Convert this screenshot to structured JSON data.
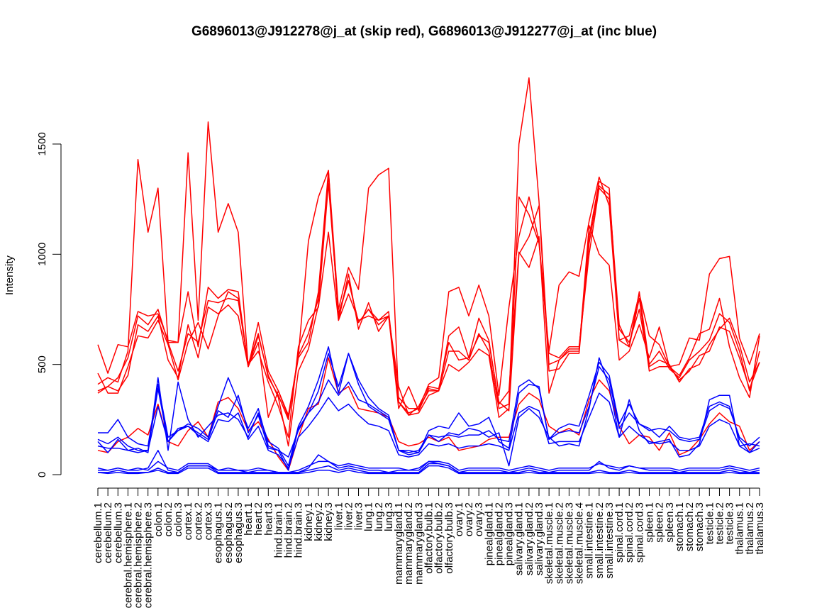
{
  "chart_data": {
    "type": "line",
    "title": "G6896013@J912278@j_at (skip red), G6896013@J912277@j_at (inc blue)",
    "xlabel": "",
    "ylabel": "Intensity",
    "ylim": [
      0,
      1820
    ],
    "yticks": [
      0,
      500,
      1000,
      1500
    ],
    "grid": false,
    "legend": "none",
    "colors": {
      "skip": "#ff0000",
      "inc": "#0000ff",
      "axis": "#000000"
    },
    "categories": [
      "cerebellum.1",
      "cerebellum.2",
      "cerebellum.3",
      "cerebral.hemisphere.1",
      "cerebral.hemisphere.2",
      "cerebral.hemisphere.3",
      "colon.1",
      "colon.2",
      "colon.3",
      "cortex.1",
      "cortex.2",
      "cortex.3",
      "esophagus.1",
      "esophagus.2",
      "esophagus.3",
      "heart.1",
      "heart.2",
      "heart.3",
      "hind.brain.1",
      "hind.brain.2",
      "hind.brain.3",
      "kidney.1",
      "kidney.2",
      "kidney.3",
      "liver.1",
      "liver.2",
      "liver.3",
      "lung.1",
      "lung.2",
      "lung.3",
      "mammarygland.1",
      "mammarygland.2",
      "mammarygland.3",
      "olfactory.bulb.1",
      "olfactory.bulb.2",
      "olfactory.bulb.3",
      "ovary.1",
      "ovary.2",
      "ovary.3",
      "pinealgland.1",
      "pinealgland.2",
      "pinealgland.3",
      "salivary.gland.1",
      "salivary.gland.2",
      "salivary.gland.3",
      "skeletal.muscle.1",
      "skeletal.muscle.2",
      "skeletal.muscle.3",
      "skeletal.muscle.4",
      "small.intestine.1",
      "small.intestine.2",
      "small.intestine.3",
      "spinal.cord.1",
      "spinal.cord.2",
      "spinal.cord.3",
      "spleen.1",
      "spleen.2",
      "spleen.3",
      "stomach.1",
      "stomach.2",
      "stomach.3",
      "testicle.1",
      "testicle.2",
      "testicle.3",
      "thalamus.1",
      "thalamus.2",
      "thalamus.3"
    ],
    "series": [
      {
        "group": "skip",
        "values": [
          590,
          460,
          590,
          580,
          740,
          720,
          730,
          610,
          600,
          830,
          580,
          850,
          800,
          840,
          830,
          490,
          690,
          470,
          380,
          260,
          530,
          600,
          830,
          1380,
          700,
          910,
          660,
          780,
          650,
          720,
          300,
          400,
          290,
          390,
          380,
          630,
          670,
          530,
          710,
          610,
          320,
          380,
          1010,
          940,
          1080,
          370,
          520,
          560,
          560,
          1130,
          1000,
          950,
          520,
          560,
          680,
          530,
          670,
          490,
          450,
          530,
          640,
          660,
          800,
          580,
          440,
          350,
          630
        ]
      },
      {
        "group": "skip",
        "values": [
          460,
          370,
          370,
          490,
          630,
          620,
          700,
          590,
          430,
          600,
          690,
          570,
          720,
          830,
          800,
          500,
          560,
          420,
          310,
          170,
          580,
          700,
          760,
          1100,
          700,
          820,
          700,
          720,
          700,
          720,
          400,
          270,
          310,
          400,
          390,
          600,
          520,
          530,
          630,
          600,
          330,
          290,
          1000,
          1080,
          1220,
          470,
          480,
          550,
          550,
          1050,
          1310,
          1270,
          680,
          580,
          800,
          470,
          490,
          490,
          430,
          470,
          540,
          560,
          670,
          650,
          530,
          390,
          510
        ]
      },
      {
        "group": "skip",
        "values": [
          370,
          400,
          380,
          450,
          680,
          650,
          720,
          520,
          440,
          680,
          530,
          760,
          730,
          770,
          720,
          490,
          630,
          450,
          350,
          130,
          470,
          570,
          770,
          1320,
          730,
          880,
          690,
          750,
          700,
          740,
          330,
          270,
          280,
          360,
          380,
          500,
          470,
          510,
          570,
          540,
          260,
          300,
          1260,
          1180,
          1050,
          550,
          530,
          580,
          580,
          1000,
          1300,
          1250,
          660,
          600,
          750,
          490,
          520,
          500,
          420,
          480,
          500,
          590,
          660,
          710,
          590,
          420,
          510
        ]
      },
      {
        "group": "skip",
        "values": [
          380,
          400,
          440,
          530,
          720,
          680,
          750,
          600,
          470,
          640,
          600,
          790,
          780,
          800,
          790,
          500,
          640,
          440,
          360,
          250,
          540,
          640,
          800,
          1360,
          720,
          880,
          690,
          750,
          680,
          720,
          350,
          300,
          300,
          380,
          380,
          560,
          560,
          520,
          640,
          560,
          300,
          320,
          1500,
          1800,
          1240,
          500,
          520,
          570,
          570,
          1080,
          1330,
          1300,
          610,
          580,
          830,
          500,
          560,
          480,
          440,
          520,
          560,
          610,
          730,
          690,
          560,
          380,
          560
        ]
      },
      {
        "group": "skip",
        "values": [
          410,
          440,
          420,
          560,
          1430,
          1100,
          1300,
          600,
          600,
          1460,
          700,
          1600,
          1100,
          1230,
          1100,
          490,
          600,
          260,
          380,
          270,
          540,
          1060,
          1260,
          1380,
          750,
          940,
          840,
          1300,
          1360,
          1390,
          330,
          280,
          300,
          410,
          440,
          830,
          850,
          720,
          860,
          720,
          360,
          760,
          1080,
          1260,
          1060,
          560,
          860,
          920,
          900,
          1150,
          1350,
          1220,
          610,
          630,
          820,
          630,
          590,
          490,
          500,
          620,
          610,
          910,
          980,
          990,
          620,
          500,
          640
        ]
      },
      {
        "group": "skip",
        "values": [
          110,
          100,
          150,
          170,
          210,
          180,
          320,
          150,
          130,
          200,
          240,
          170,
          330,
          350,
          300,
          200,
          240,
          160,
          80,
          20,
          170,
          300,
          320,
          530,
          370,
          400,
          300,
          290,
          280,
          260,
          150,
          130,
          140,
          170,
          150,
          170,
          110,
          120,
          130,
          160,
          170,
          170,
          320,
          370,
          340,
          220,
          190,
          210,
          180,
          340,
          430,
          380,
          220,
          140,
          180,
          170,
          110,
          190,
          90,
          110,
          160,
          230,
          280,
          240,
          220,
          110,
          150
        ]
      },
      {
        "group": "inc",
        "values": [
          150,
          100,
          160,
          110,
          120,
          100,
          440,
          110,
          420,
          250,
          170,
          220,
          270,
          280,
          250,
          170,
          280,
          150,
          120,
          40,
          220,
          310,
          430,
          580,
          370,
          550,
          410,
          310,
          280,
          250,
          110,
          100,
          110,
          180,
          150,
          190,
          180,
          210,
          200,
          170,
          190,
          40,
          260,
          300,
          260,
          170,
          130,
          140,
          130,
          300,
          530,
          400,
          170,
          340,
          200,
          140,
          150,
          160,
          80,
          90,
          140,
          340,
          360,
          360,
          130,
          140,
          130
        ]
      },
      {
        "group": "inc",
        "values": [
          190,
          190,
          250,
          170,
          140,
          130,
          410,
          170,
          200,
          230,
          210,
          170,
          310,
          440,
          330,
          210,
          300,
          130,
          110,
          20,
          210,
          280,
          380,
          550,
          400,
          550,
          430,
          350,
          300,
          270,
          110,
          110,
          100,
          200,
          220,
          210,
          280,
          220,
          230,
          260,
          150,
          120,
          370,
          410,
          400,
          160,
          210,
          230,
          220,
          360,
          510,
          450,
          230,
          320,
          230,
          210,
          170,
          220,
          170,
          160,
          170,
          310,
          330,
          310,
          160,
          100,
          150
        ]
      },
      {
        "group": "inc",
        "values": [
          160,
          140,
          170,
          130,
          110,
          110,
          390,
          150,
          210,
          220,
          190,
          160,
          290,
          260,
          360,
          190,
          270,
          120,
          110,
          80,
          200,
          280,
          330,
          430,
          360,
          420,
          340,
          320,
          290,
          260,
          110,
          90,
          100,
          180,
          170,
          180,
          170,
          180,
          180,
          200,
          160,
          150,
          400,
          430,
          390,
          160,
          190,
          200,
          190,
          310,
          490,
          430,
          210,
          280,
          230,
          200,
          210,
          200,
          160,
          150,
          160,
          290,
          320,
          300,
          170,
          130,
          170
        ]
      },
      {
        "group": "inc",
        "values": [
          130,
          120,
          120,
          110,
          100,
          110,
          310,
          150,
          200,
          220,
          180,
          150,
          250,
          240,
          280,
          160,
          220,
          110,
          90,
          30,
          170,
          220,
          280,
          350,
          290,
          320,
          270,
          230,
          220,
          200,
          90,
          80,
          90,
          140,
          130,
          140,
          120,
          130,
          130,
          140,
          130,
          110,
          280,
          310,
          290,
          140,
          150,
          150,
          150,
          260,
          370,
          330,
          170,
          220,
          180,
          150,
          140,
          150,
          110,
          110,
          130,
          220,
          250,
          230,
          130,
          100,
          120
        ]
      },
      {
        "group": "inc",
        "values": [
          20,
          20,
          30,
          20,
          20,
          30,
          110,
          20,
          10,
          40,
          40,
          40,
          20,
          30,
          20,
          10,
          20,
          20,
          10,
          10,
          10,
          30,
          90,
          60,
          30,
          40,
          30,
          20,
          20,
          10,
          20,
          20,
          20,
          60,
          50,
          40,
          10,
          20,
          20,
          20,
          20,
          10,
          20,
          30,
          20,
          10,
          20,
          20,
          20,
          20,
          60,
          30,
          20,
          40,
          30,
          20,
          20,
          20,
          10,
          20,
          20,
          20,
          20,
          30,
          20,
          10,
          20
        ]
      },
      {
        "group": "inc",
        "values": [
          10,
          10,
          20,
          10,
          10,
          10,
          30,
          10,
          10,
          40,
          40,
          40,
          10,
          10,
          10,
          10,
          10,
          10,
          10,
          10,
          10,
          20,
          30,
          40,
          20,
          30,
          20,
          10,
          10,
          10,
          10,
          10,
          10,
          50,
          50,
          40,
          10,
          10,
          10,
          10,
          10,
          10,
          10,
          20,
          10,
          10,
          10,
          10,
          10,
          10,
          20,
          10,
          10,
          20,
          10,
          10,
          10,
          10,
          10,
          10,
          10,
          10,
          10,
          20,
          10,
          10,
          10
        ]
      },
      {
        "group": "inc",
        "values": [
          30,
          20,
          30,
          20,
          30,
          20,
          60,
          30,
          20,
          50,
          50,
          50,
          20,
          20,
          20,
          20,
          30,
          20,
          10,
          10,
          20,
          40,
          60,
          60,
          40,
          50,
          40,
          30,
          30,
          30,
          30,
          20,
          30,
          60,
          60,
          50,
          20,
          30,
          30,
          30,
          30,
          20,
          30,
          40,
          30,
          20,
          30,
          30,
          30,
          30,
          50,
          40,
          30,
          40,
          30,
          30,
          30,
          30,
          20,
          30,
          30,
          30,
          30,
          40,
          30,
          20,
          30
        ]
      },
      {
        "group": "inc",
        "values": [
          10,
          5,
          10,
          5,
          5,
          10,
          20,
          5,
          5,
          30,
          30,
          30,
          5,
          5,
          5,
          5,
          5,
          5,
          5,
          5,
          5,
          10,
          20,
          20,
          10,
          20,
          10,
          5,
          5,
          5,
          5,
          5,
          5,
          40,
          40,
          30,
          5,
          5,
          5,
          5,
          5,
          5,
          5,
          10,
          5,
          5,
          5,
          5,
          5,
          5,
          10,
          5,
          5,
          10,
          5,
          5,
          5,
          5,
          5,
          5,
          5,
          5,
          5,
          10,
          5,
          5,
          5
        ]
      }
    ]
  }
}
